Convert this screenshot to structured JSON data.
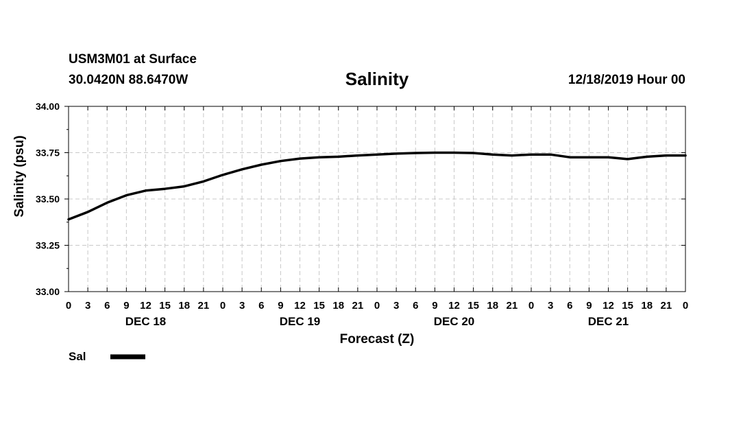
{
  "header": {
    "station": "USM3M01 at Surface",
    "coords": "30.0420N 88.6470W",
    "title": "Salinity",
    "date": "12/18/2019 Hour 00"
  },
  "chart_data": {
    "type": "line",
    "title": "Salinity",
    "xlabel": "Forecast (Z)",
    "ylabel": "Salinity (psu)",
    "ylim": [
      33.0,
      34.0
    ],
    "yticks": [
      "33.00",
      "33.25",
      "33.50",
      "33.75",
      "34.00"
    ],
    "yvalues": [
      33.0,
      33.25,
      33.5,
      33.75,
      34.0
    ],
    "xlim": [
      0,
      96
    ],
    "xtick_step_hours": 3,
    "xtick_labels": [
      "0",
      "3",
      "6",
      "9",
      "12",
      "15",
      "18",
      "21",
      "0",
      "3",
      "6",
      "9",
      "12",
      "15",
      "18",
      "21",
      "0",
      "3",
      "6",
      "9",
      "12",
      "15",
      "18",
      "21",
      "0",
      "3",
      "6",
      "9",
      "12",
      "15",
      "18",
      "21",
      "0"
    ],
    "day_labels": [
      {
        "label": "DEC 18",
        "hour": 12
      },
      {
        "label": "DEC 19",
        "hour": 36
      },
      {
        "label": "DEC 20",
        "hour": 60
      },
      {
        "label": "DEC 21",
        "hour": 84
      }
    ],
    "grid": true,
    "legend": {
      "position": "bottom-left",
      "label": "Sal"
    },
    "series": [
      {
        "name": "Sal",
        "color": "#000000",
        "x": [
          0,
          3,
          6,
          9,
          12,
          15,
          18,
          21,
          24,
          27,
          30,
          33,
          36,
          39,
          42,
          45,
          48,
          51,
          54,
          57,
          60,
          63,
          66,
          69,
          72,
          75,
          78,
          81,
          84,
          87,
          90,
          93,
          96
        ],
        "values": [
          33.39,
          33.43,
          33.48,
          33.52,
          33.545,
          33.555,
          33.568,
          33.595,
          33.63,
          33.66,
          33.685,
          33.705,
          33.718,
          33.725,
          33.728,
          33.735,
          33.74,
          33.745,
          33.748,
          33.75,
          33.75,
          33.748,
          33.74,
          33.735,
          33.74,
          33.74,
          33.725,
          33.725,
          33.725,
          33.715,
          33.728,
          33.735,
          33.735
        ]
      }
    ]
  }
}
